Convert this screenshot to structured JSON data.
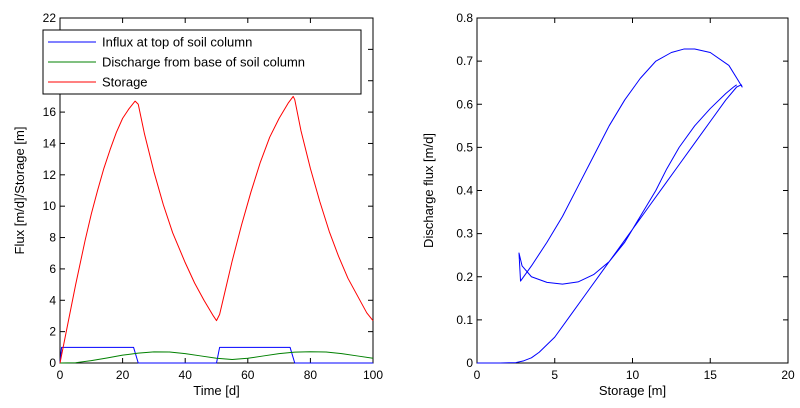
{
  "chart_data": [
    {
      "type": "line",
      "xlabel": "Time [d]",
      "ylabel": "Flux [m/d]/Storage [m]",
      "xlim": [
        0,
        100
      ],
      "ylim": [
        0,
        22
      ],
      "xticks": [
        "0",
        "20",
        "40",
        "60",
        "80",
        "100"
      ],
      "yticks": [
        "0",
        "2",
        "4",
        "6",
        "8",
        "10",
        "12",
        "14",
        "16",
        "18",
        "20",
        "22"
      ],
      "grid": false,
      "legend": "top-left",
      "series": [
        {
          "name": "Influx at top of soil column",
          "color": "#0000ff",
          "x": [
            0,
            0.5,
            23.5,
            25,
            50,
            51,
            73.5,
            75,
            100
          ],
          "y": [
            0,
            1,
            1,
            0,
            0,
            1,
            1,
            0,
            0
          ]
        },
        {
          "name": "Discharge from base of soil column",
          "color": "#008000",
          "x": [
            0,
            5,
            10,
            15,
            20,
            25,
            30,
            35,
            40,
            45,
            50,
            55,
            60,
            65,
            70,
            75,
            80,
            85,
            90,
            95,
            100
          ],
          "y": [
            0,
            0.02,
            0.15,
            0.32,
            0.5,
            0.63,
            0.71,
            0.7,
            0.6,
            0.45,
            0.3,
            0.22,
            0.3,
            0.45,
            0.6,
            0.69,
            0.72,
            0.7,
            0.6,
            0.45,
            0.3
          ]
        },
        {
          "name": "Storage",
          "color": "#ff0000",
          "x": [
            0,
            2,
            5,
            8,
            10,
            12,
            14,
            16,
            18,
            20,
            22,
            24,
            25,
            27,
            30,
            33,
            36,
            40,
            43,
            46,
            49,
            50,
            51,
            53,
            55,
            58,
            61,
            64,
            67,
            70,
            73,
            74.5,
            75,
            77,
            80,
            83,
            86,
            89,
            92,
            95,
            98,
            100
          ],
          "y": [
            0,
            2,
            5,
            7.8,
            9.5,
            11,
            12.4,
            13.6,
            14.7,
            15.6,
            16.2,
            16.7,
            16.5,
            14.6,
            12.2,
            10.1,
            8.3,
            6.4,
            5.1,
            4,
            3,
            2.7,
            3.1,
            4.8,
            6.5,
            8.8,
            10.9,
            12.8,
            14.4,
            15.6,
            16.6,
            17,
            16.8,
            14.8,
            12.4,
            10.3,
            8.4,
            6.8,
            5.4,
            4.3,
            3.2,
            2.7
          ]
        }
      ]
    },
    {
      "type": "line",
      "xlabel": "Storage [m]",
      "ylabel": "Discharge flux [m/d]",
      "xlim": [
        0,
        20
      ],
      "ylim": [
        0,
        0.8
      ],
      "xticks": [
        "0",
        "5",
        "10",
        "15",
        "20"
      ],
      "yticks": [
        "0",
        "0.1",
        "0.2",
        "0.3",
        "0.4",
        "0.5",
        "0.6",
        "0.7",
        "0.8"
      ],
      "grid": false,
      "legend": "none",
      "series": [
        {
          "color": "#0000ff",
          "x": [
            0,
            1.5,
            2.5,
            3,
            3.5,
            4,
            5,
            6,
            7,
            8,
            9,
            10,
            11,
            12,
            13,
            14,
            15,
            16,
            16.7,
            17,
            17.05,
            16.8,
            16.2,
            15,
            14,
            13.3,
            12.5,
            11.5,
            10.5,
            9.5,
            8.5,
            7.5,
            6.5,
            5.5,
            4.5,
            3.5,
            2.8,
            2.7,
            2.9,
            3.5,
            4.5,
            5.5,
            6.5,
            7.5,
            8.5,
            9.5,
            10.5,
            11.5,
            12.2,
            13,
            14,
            15,
            16,
            16.5,
            16.7
          ],
          "y": [
            0,
            0,
            0.001,
            0.005,
            0.012,
            0.025,
            0.06,
            0.11,
            0.16,
            0.21,
            0.26,
            0.31,
            0.36,
            0.41,
            0.46,
            0.51,
            0.56,
            0.61,
            0.64,
            0.645,
            0.64,
            0.655,
            0.69,
            0.72,
            0.728,
            0.728,
            0.72,
            0.7,
            0.66,
            0.61,
            0.55,
            0.48,
            0.41,
            0.34,
            0.28,
            0.225,
            0.19,
            0.255,
            0.225,
            0.2,
            0.187,
            0.183,
            0.188,
            0.205,
            0.235,
            0.28,
            0.34,
            0.4,
            0.45,
            0.5,
            0.55,
            0.59,
            0.625,
            0.64,
            0.645
          ]
        }
      ]
    }
  ]
}
